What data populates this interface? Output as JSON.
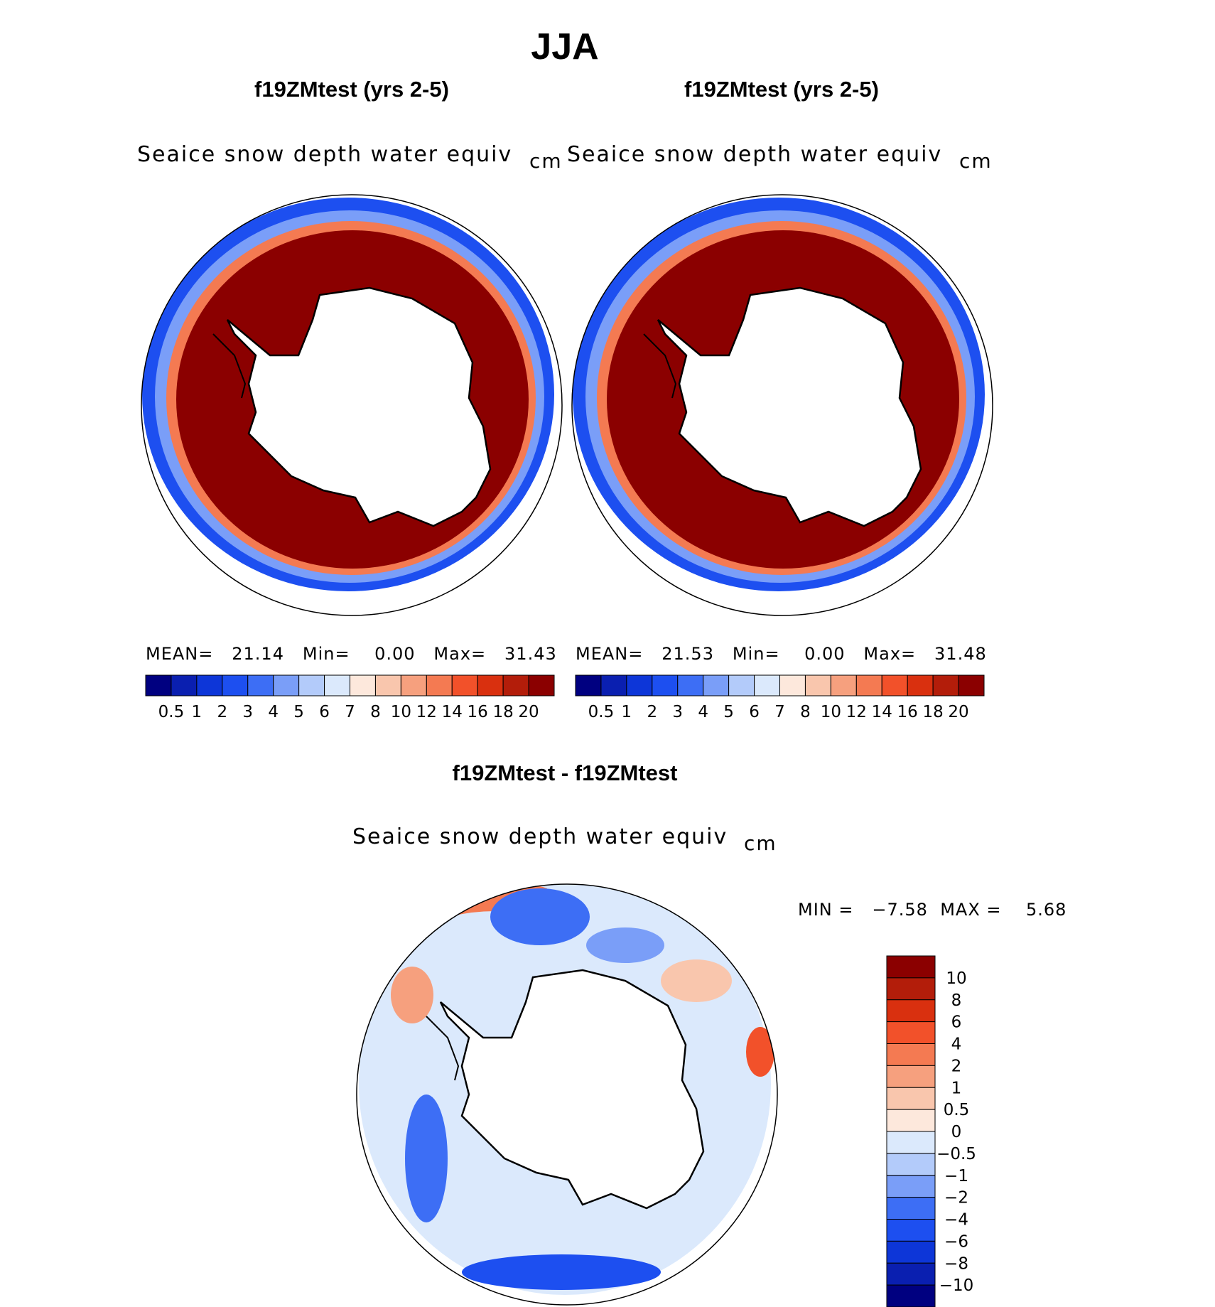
{
  "figure": {
    "title": "JJA",
    "panels": [
      {
        "title": "f19ZMtest (yrs 2-5)",
        "variable": "Seaice snow depth water equiv",
        "units": "cm",
        "stats": {
          "mean_label": "MEAN=",
          "mean": "21.14",
          "min_label": "Min=",
          "min": "0.00",
          "max_label": "Max=",
          "max": "31.43"
        }
      },
      {
        "title": "f19ZMtest (yrs 2-5)",
        "variable": "Seaice snow depth water equiv",
        "units": "cm",
        "stats": {
          "mean_label": "MEAN=",
          "mean": "21.53",
          "min_label": "Min=",
          "min": "0.00",
          "max_label": "Max=",
          "max": "31.48"
        }
      }
    ],
    "diff_panel": {
      "title": "f19ZMtest - f19ZMtest",
      "variable": "Seaice snow depth water equiv",
      "units": "cm",
      "min_label": "MIN =",
      "min": "−7.58",
      "max_label": "MAX =",
      "max": "5.68"
    }
  },
  "chart_data": [
    {
      "type": "heatmap",
      "projection": "south-polar-stereographic",
      "title": "f19ZMtest (yrs 2-5)",
      "variable": "Seaice snow depth water equiv",
      "units": "cm",
      "mean": 21.14,
      "min": 0.0,
      "max": 31.43,
      "levels": [
        "0.5",
        "1",
        "2",
        "3",
        "4",
        "5",
        "6",
        "7",
        "8",
        "10",
        "12",
        "14",
        "16",
        "18",
        "20"
      ],
      "colors": [
        "#000080",
        "#0a1fb0",
        "#0d36d8",
        "#1d4ff0",
        "#3d6ef5",
        "#7a9ef8",
        "#b3cbfa",
        "#dbe9fc",
        "#fde8dc",
        "#f9c6ad",
        "#f6a07e",
        "#f47a52",
        "#f2512a",
        "#d9300f",
        "#b31d0a",
        "#8b0000"
      ]
    },
    {
      "type": "heatmap",
      "projection": "south-polar-stereographic",
      "title": "f19ZMtest (yrs 2-5)",
      "variable": "Seaice snow depth water equiv",
      "units": "cm",
      "mean": 21.53,
      "min": 0.0,
      "max": 31.48,
      "levels": [
        "0.5",
        "1",
        "2",
        "3",
        "4",
        "5",
        "6",
        "7",
        "8",
        "10",
        "12",
        "14",
        "16",
        "18",
        "20"
      ],
      "colors": [
        "#000080",
        "#0a1fb0",
        "#0d36d8",
        "#1d4ff0",
        "#3d6ef5",
        "#7a9ef8",
        "#b3cbfa",
        "#dbe9fc",
        "#fde8dc",
        "#f9c6ad",
        "#f6a07e",
        "#f47a52",
        "#f2512a",
        "#d9300f",
        "#b31d0a",
        "#8b0000"
      ]
    },
    {
      "type": "heatmap",
      "projection": "south-polar-stereographic",
      "title": "f19ZMtest - f19ZMtest",
      "variable": "Seaice snow depth water equiv",
      "units": "cm",
      "min": -7.58,
      "max": 5.68,
      "levels": [
        "10",
        "8",
        "6",
        "4",
        "2",
        "1",
        "0.5",
        "0",
        "−0.5",
        "−1",
        "−2",
        "−4",
        "−6",
        "−8",
        "−10"
      ],
      "colors": [
        "#8b0000",
        "#b31d0a",
        "#d9300f",
        "#f2512a",
        "#f47a52",
        "#f6a07e",
        "#f9c6ad",
        "#fde8dc",
        "#dbe9fc",
        "#b3cbfa",
        "#7a9ef8",
        "#3d6ef5",
        "#1d4ff0",
        "#0d36d8",
        "#0a1fb0",
        "#000080"
      ]
    }
  ]
}
